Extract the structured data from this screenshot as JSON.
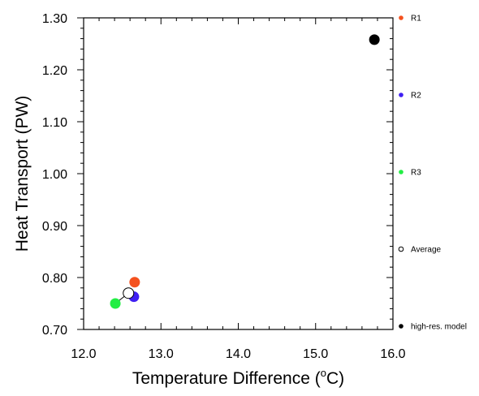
{
  "chart_data": {
    "type": "scatter",
    "xlabel_main": "Temperature Difference (",
    "xlabel_sup": "o",
    "xlabel_unit": "C)",
    "ylabel": "Heat Transport (PW)",
    "xlim": [
      12.0,
      16.0
    ],
    "ylim": [
      0.7,
      1.3
    ],
    "x_ticks": [
      "12.0",
      "13.0",
      "14.0",
      "15.0",
      "16.0"
    ],
    "y_ticks": [
      "0.70",
      "0.80",
      "0.90",
      "1.00",
      "1.10",
      "1.20",
      "1.30"
    ],
    "connector": [
      [
        12.41,
        0.75
      ],
      [
        12.58,
        0.77
      ],
      [
        12.65,
        0.763
      ]
    ],
    "series": [
      {
        "name": "R1",
        "color": "#f4511e",
        "marker": "filled",
        "x": 12.66,
        "y": 0.791
      },
      {
        "name": "R2",
        "color": "#3f1ff2",
        "marker": "filled",
        "x": 12.65,
        "y": 0.763
      },
      {
        "name": "R3",
        "color": "#22ee44",
        "marker": "filled",
        "x": 12.41,
        "y": 0.75
      },
      {
        "name": "Average",
        "color": "#000000",
        "marker": "open",
        "x": 12.58,
        "y": 0.77
      },
      {
        "name": "high-res. model",
        "color": "#000000",
        "marker": "filled",
        "x": 15.76,
        "y": 1.258
      }
    ],
    "grid": false,
    "legend_position": "right"
  }
}
